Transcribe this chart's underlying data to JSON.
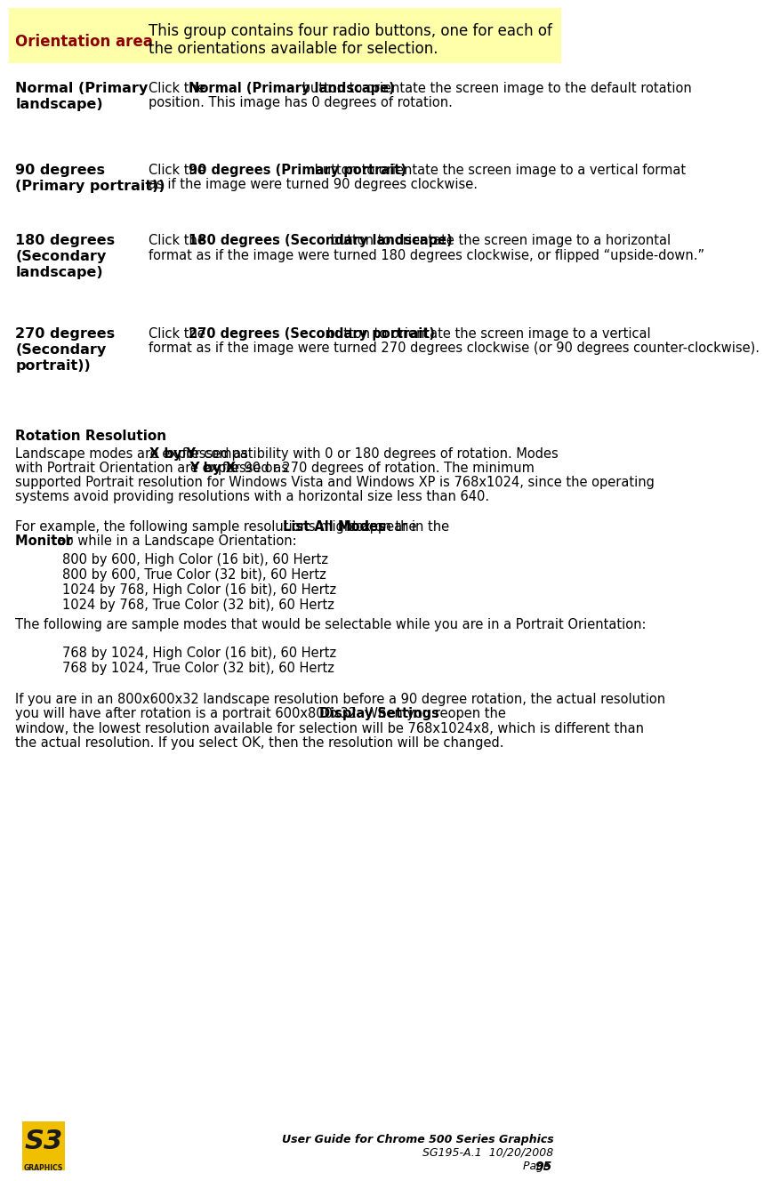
{
  "bg_color": "#ffffff",
  "header_bg_color": "#ffffaa",
  "header_label_color": "#8b0000",
  "header_label_text": "Orientation area",
  "header_desc_text": "This group contains four radio buttons, one for each of\nthe orientations available for selection.",
  "table_rows": [
    {
      "label": "Normal (Primary\nlandscape)",
      "desc_parts": [
        {
          "text": "Click the ",
          "bold": false
        },
        {
          "text": "Normal (Primary landscape)",
          "bold": true
        },
        {
          "text": " button to orientate the screen image to the default rotation position. This image has 0 degrees of rotation.",
          "bold": false
        }
      ]
    },
    {
      "label": "90 degrees\n(Primary portrait))",
      "desc_parts": [
        {
          "text": "Click the ",
          "bold": false
        },
        {
          "text": "90 degrees (Primary portrait)",
          "bold": true
        },
        {
          "text": " button to orientate the screen image to a vertical format as if the image were turned 90 degrees clockwise.",
          "bold": false
        }
      ]
    },
    {
      "label": "180 degrees\n(Secondary\nlandscape)",
      "desc_parts": [
        {
          "text": "Click the ",
          "bold": false
        },
        {
          "text": "180 degrees (Secondary landscape)",
          "bold": true
        },
        {
          "text": " button to orientate the screen image to a horizontal format as if the image were turned 180 degrees clockwise, or flipped “upside-down.”",
          "bold": false
        }
      ]
    },
    {
      "label": "270 degrees\n(Secondary\nportrait))",
      "desc_parts": [
        {
          "text": "Click the ",
          "bold": false
        },
        {
          "text": "270 degrees (Secondary portrait)",
          "bold": true
        },
        {
          "text": " button to orientate the screen image to a vertical format as if the image were turned 270 degrees clockwise (or 90 degrees counter-clockwise).",
          "bold": false
        }
      ]
    }
  ],
  "section_title": "Rotation Resolution",
  "body_paragraphs": [
    "Landscape modes are expressed as **X by Y** for compatibility with 0 or 180 degrees of rotation. Modes with Portrait Orientation are expressed as **Y by X** for 90 or 270 degrees of rotation. The minimum supported Portrait resolution for Windows Vista and Windows XP is 768x1024, since the operating systems avoid providing resolutions with a horizontal size less than 640.",
    "For example, the following sample resolutions might appear in the **List All Modes** box on the **Monitor** tab while in a Landscape Orientation:",
    "The following are sample modes that would be selectable while you are in a Portrait Orientation:",
    "If you are in an 800x600x32 landscape resolution before a 90 degree rotation, the actual resolution you will have after rotation is a portrait 600x800x32. When you reopen the **Display Settings** window, the lowest resolution available for selection will be 768x1024x8, which is different than the actual resolution. If you select OK, then the resolution will be changed."
  ],
  "landscape_modes": [
    "800 by 600, High Color (16 bit), 60 Hertz",
    "800 by 600, True Color (32 bit), 60 Hertz",
    "1024 by 768, High Color (16 bit), 60 Hertz",
    "1024 by 768, True Color (32 bit), 60 Hertz"
  ],
  "portrait_modes": [
    "768 by 1024, High Color (16 bit), 60 Hertz",
    "768 by 1024, True Color (32 bit), 60 Hertz"
  ],
  "footer_title": "User Guide for Chrome 500 Series Graphics",
  "footer_line2": "SG195-A.1  10/20/2008",
  "footer_line3": "Page ",
  "footer_page": "95",
  "logo_bg": "#f0c000",
  "logo_text": "S3",
  "logo_sub": "GRAPHICS",
  "text_color": "#000000",
  "label_color": "#000000",
  "font_size_body": 10.5,
  "font_size_header_label": 12,
  "font_size_header_desc": 12,
  "font_size_section": 11,
  "font_size_footer": 9
}
